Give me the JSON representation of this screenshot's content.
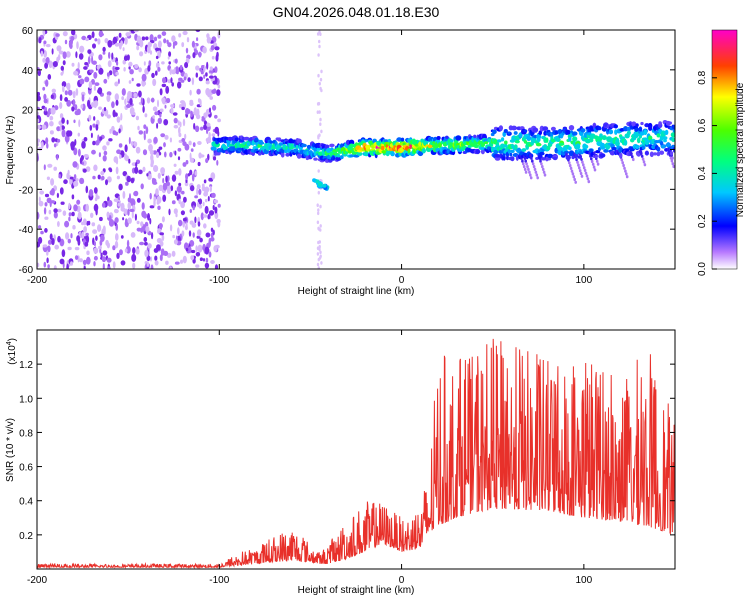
{
  "title": "GN04.2026.048.01.18.E30",
  "chart_data": [
    {
      "type": "heatmap",
      "xlabel": "Height of straight line (km)",
      "ylabel": "Frequency (Hz)",
      "xlim": [
        -200,
        150
      ],
      "ylim": [
        -60,
        60
      ],
      "xticks": [
        -200,
        -100,
        0,
        100
      ],
      "yticks": [
        60,
        40,
        20,
        0,
        -20,
        -40,
        -60
      ],
      "colorbar": {
        "label": "Normalized spectral amplitude",
        "range": [
          0,
          1
        ],
        "ticks": [
          0.0,
          0.2,
          0.4,
          0.6,
          0.8
        ],
        "tick_labels": [
          "0.0",
          "0.2",
          "0.4",
          "0.6",
          "0.8"
        ]
      },
      "main_band": {
        "x": [
          -103,
          -80,
          -60,
          -40,
          -20,
          0,
          20,
          50,
          80,
          100,
          120,
          150
        ],
        "freq_center": [
          2,
          2,
          1,
          -2,
          1,
          1,
          2,
          3,
          3,
          4,
          5,
          6
        ],
        "peak_amplitude": [
          0.45,
          0.5,
          0.45,
          0.5,
          0.95,
          0.98,
          0.7,
          0.55,
          0.5,
          0.55,
          0.5,
          0.45
        ]
      },
      "secondary_feature": {
        "x": [
          -48,
          -40
        ],
        "freq": [
          -16,
          -20
        ],
        "peak_amplitude": 0.35
      },
      "noise_region": {
        "x_range": [
          -200,
          -100
        ],
        "amplitude": 0.1
      }
    },
    {
      "type": "line",
      "xlabel": "Height of straight line (km)",
      "ylabel": "SNR (10 * v/v)",
      "scale_label": "(x10",
      "scale_exp": "4",
      "scale_close": ")",
      "xlim": [
        -200,
        150
      ],
      "ylim": [
        0,
        1.4
      ],
      "xticks": [
        -200,
        -100,
        0,
        100
      ],
      "yticks": [
        0.2,
        0.4,
        0.6,
        0.8,
        1.0,
        1.2
      ],
      "ytick_labels": [
        "0.2",
        "0.4",
        "0.6",
        "0.8",
        "1.0",
        "1.2"
      ],
      "color": "#e8302a",
      "envelope": {
        "x": [
          -200,
          -100,
          -90,
          -80,
          -70,
          -60,
          -50,
          -45,
          -40,
          -30,
          -20,
          -10,
          0,
          10,
          15,
          20,
          30,
          40,
          50,
          60,
          80,
          100,
          120,
          135,
          150
        ],
        "base": [
          0.01,
          0.01,
          0.02,
          0.03,
          0.04,
          0.05,
          0.04,
          0.03,
          0.03,
          0.06,
          0.1,
          0.15,
          0.1,
          0.12,
          0.2,
          0.25,
          0.3,
          0.33,
          0.35,
          0.35,
          0.34,
          0.3,
          0.28,
          0.25,
          0.2
        ],
        "peak": [
          0.03,
          0.03,
          0.1,
          0.13,
          0.2,
          0.27,
          0.15,
          0.1,
          0.15,
          0.3,
          0.4,
          0.4,
          0.3,
          0.38,
          0.6,
          1.27,
          1.27,
          1.25,
          1.36,
          1.33,
          1.25,
          1.32,
          1.1,
          1.33,
          0.85
        ]
      }
    }
  ]
}
